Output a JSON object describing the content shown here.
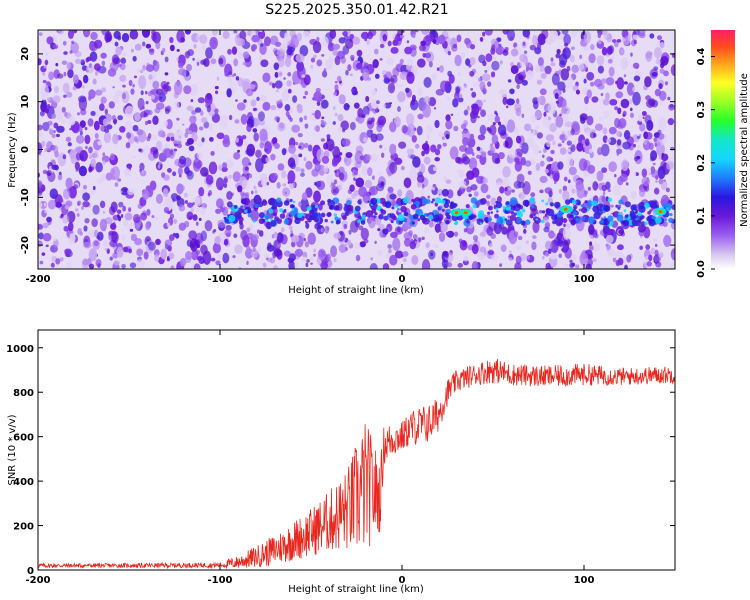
{
  "title": "S225.2025.350.01.42.R21",
  "charts": [
    {
      "type": "heatmap",
      "xlabel": "Height of straight line (km)",
      "ylabel": "Frequency (Hz)",
      "xlim": [
        -200,
        150
      ],
      "ylim": [
        -25,
        25
      ],
      "xticks": [
        -200,
        -100,
        0,
        100
      ],
      "xtick_labels": [
        "-200",
        "-100",
        "0",
        "100"
      ],
      "yticks": [
        -20,
        -10,
        0,
        10,
        20
      ],
      "ytick_labels": [
        "-20",
        "-10",
        "0",
        "10",
        "20"
      ],
      "colorbar": {
        "label": "Normalized spectral amplitude",
        "range": [
          0,
          0.45
        ],
        "ticks": [
          0,
          0.1,
          0.2,
          0.3,
          0.4
        ],
        "tick_labels": [
          "0.0",
          "0.1",
          "0.2",
          "0.3",
          "0.4"
        ]
      },
      "notes": "Broadband purple noise; persistent band near -12 to -14 Hz from about -100 km to 150 km with peaks near 30, 35, 90 and 142 km."
    },
    {
      "type": "line",
      "xlabel": "Height of straight line (km)",
      "ylabel": "SNR (10 * v/v)",
      "xlim": [
        -200,
        150
      ],
      "ylim": [
        0,
        1080
      ],
      "xticks": [
        -200,
        -100,
        0,
        100
      ],
      "xtick_labels": [
        "-200",
        "-100",
        "0",
        "100"
      ],
      "yticks": [
        0,
        200,
        400,
        600,
        800,
        1000
      ],
      "ytick_labels": [
        "0",
        "200",
        "400",
        "600",
        "800",
        "1000"
      ],
      "series": [
        {
          "name": "SNR",
          "color": "#e8281e",
          "x": [
            -200,
            -150,
            -100,
            -90,
            -80,
            -70,
            -60,
            -50,
            -40,
            -30,
            -25,
            -20,
            -15,
            -12,
            -10,
            -5,
            0,
            5,
            10,
            15,
            20,
            25,
            30,
            40,
            50,
            60,
            80,
            100,
            120,
            150
          ],
          "y": [
            20,
            20,
            22,
            35,
            60,
            90,
            130,
            170,
            220,
            270,
            320,
            380,
            350,
            330,
            560,
            590,
            600,
            640,
            650,
            660,
            700,
            800,
            850,
            880,
            900,
            880,
            870,
            880,
            870,
            880
          ],
          "noise": [
            10,
            10,
            12,
            30,
            50,
            70,
            90,
            110,
            140,
            190,
            260,
            300,
            220,
            160,
            90,
            80,
            70,
            80,
            90,
            90,
            80,
            60,
            50,
            50,
            60,
            50,
            50,
            50,
            40,
            40
          ]
        }
      ]
    }
  ]
}
